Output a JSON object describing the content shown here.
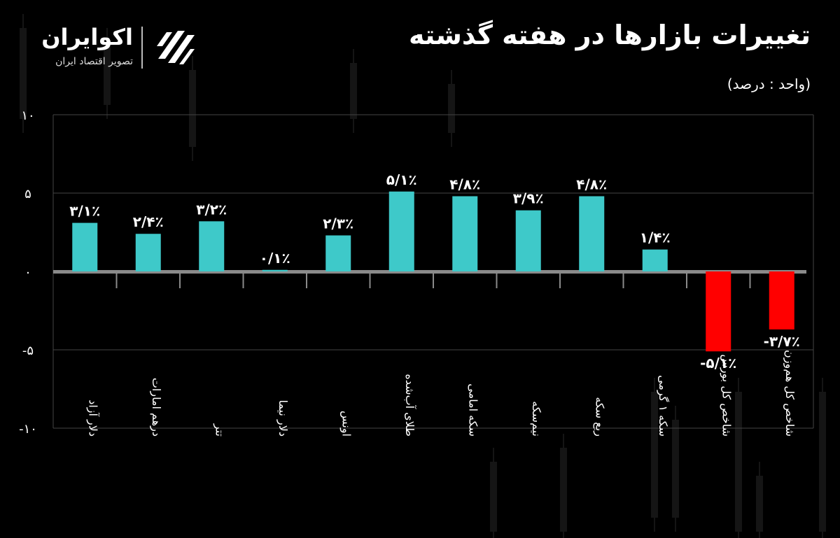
{
  "header": {
    "title": "تغییرات بازارها در هفته گذشته",
    "unit": "(واحد : درصد)"
  },
  "logo": {
    "name": "اکوایران",
    "tagline": "تصویر اقتصاد ایران"
  },
  "colors": {
    "positive": "#3ec9c9",
    "negative": "#ff0000",
    "background": "#000000",
    "axis": "#8a8a8a"
  },
  "chart_data": {
    "type": "bar",
    "title": "تغییرات بازارها در هفته گذشته",
    "ylabel": "(واحد : درصد)",
    "ylim": [
      -10,
      10
    ],
    "yticks": [
      10,
      5,
      0,
      -5,
      -10
    ],
    "ytick_labels": [
      "۱۰",
      "۵",
      "۰",
      "-۵",
      "-۱۰"
    ],
    "grid": true,
    "categories": [
      "دلار آزاد",
      "درهم امارات",
      "تتر",
      "دلار نیما",
      "اونس",
      "طلای آب‌شده",
      "سکه امامی",
      "نیم‌سکه",
      "ربع سکه",
      "سکه ۱ گرمی",
      "شاخص کل بورس",
      "شاخص کل هم‌وزن"
    ],
    "values": [
      3.1,
      2.4,
      3.2,
      0.1,
      2.3,
      5.1,
      4.8,
      3.9,
      4.8,
      1.4,
      -5.1,
      -3.7
    ],
    "value_labels": [
      "۳/۱٪",
      "۲/۴٪",
      "۳/۲٪",
      "۰/۱٪",
      "۲/۳٪",
      "۵/۱٪",
      "۴/۸٪",
      "۳/۹٪",
      "۴/۸٪",
      "۱/۴٪",
      "-۵/۱٪",
      "-۳/۷٪"
    ]
  }
}
